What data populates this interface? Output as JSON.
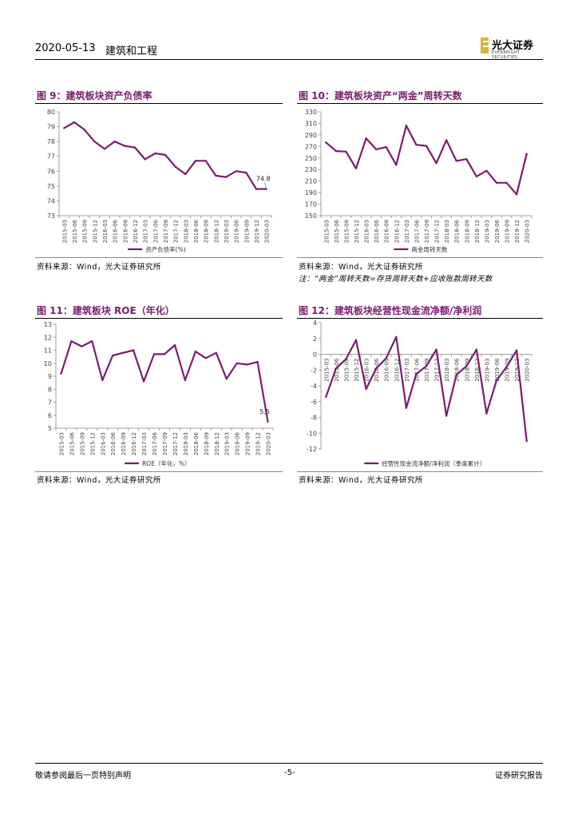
{
  "header": {
    "date": "2020-05-13",
    "sector": "建筑和工程",
    "logo_name": "光大证券",
    "logo_en": "EVERBRIGHT SECURITIES"
  },
  "footer": {
    "disclaimer": "敬请参阅最后一页特别声明",
    "page": "-5-",
    "type": "证券研究报告"
  },
  "figures": {
    "fig9": {
      "title": "图 9：建筑板块资产负债率",
      "source": "资料来源：Wind，光大证券研究所"
    },
    "fig10": {
      "title": "图 10：建筑板块资产“两金”周转天数",
      "source": "资料来源：Wind，光大证券研究所",
      "note": "注：“两金”周转天数=存货周转天数+应收账款周转天数"
    },
    "fig11": {
      "title": "图 11：建筑板块 ROE（年化）",
      "source": "资料来源：Wind，光大证券研究所"
    },
    "fig12": {
      "title": "图 12：建筑板块经营性现金流净额/净利润",
      "source": "资料来源：Wind，光大证券研究所"
    }
  },
  "chart_data": [
    {
      "id": "fig9",
      "type": "line",
      "title": "建筑板块资产负债率",
      "categories": [
        "2015-03",
        "2015-06",
        "2015-09",
        "2015-12",
        "2016-03",
        "2016-06",
        "2016-09",
        "2016-12",
        "2017-03",
        "2017-06",
        "2017-09",
        "2017-12",
        "2018-03",
        "2018-06",
        "2018-09",
        "2018-12",
        "2019-03",
        "2019-06",
        "2019-09",
        "2019-12",
        "2020-03"
      ],
      "x_tick_labels": [
        "2015-03",
        "2015-06",
        "2015-09",
        "2015-12",
        "2016-03",
        "2016-06",
        "2016-09",
        "2016-12",
        "2017-03",
        "2017-06",
        "2017-09",
        "2017-12",
        "2018-03",
        "2018-06",
        "2018-09",
        "2018-12",
        "2019-03",
        "2019-06",
        "2019-09",
        "2019-12",
        "2020-03"
      ],
      "series": [
        {
          "name": "资产负债率(%)",
          "values": [
            78.9,
            79.3,
            78.8,
            78.0,
            77.5,
            78.0,
            77.7,
            77.6,
            76.8,
            77.2,
            77.1,
            76.3,
            75.8,
            76.7,
            76.7,
            75.7,
            75.6,
            76.0,
            75.9,
            74.8,
            74.8
          ]
        }
      ],
      "ylim": [
        73,
        80
      ],
      "yticks": [
        73,
        74,
        75,
        76,
        77,
        78,
        79,
        80
      ],
      "annotation": {
        "text": "74.8",
        "index": 20
      },
      "color": "#7a1c6e"
    },
    {
      "id": "fig10",
      "type": "line",
      "title": "建筑板块资产“两金”周转天数",
      "categories": [
        "2015-03",
        "2015-06",
        "2015-09",
        "2015-12",
        "2016-03",
        "2016-06",
        "2016-09",
        "2016-12",
        "2017-03",
        "2017-06",
        "2017-09",
        "2017-12",
        "2018-03",
        "2018-06",
        "2018-09",
        "2018-12",
        "2019-03",
        "2019-06",
        "2019-09",
        "2019-12",
        "2020-03"
      ],
      "x_tick_labels": [
        "2015-03",
        "2015-06",
        "2015-09",
        "2015-12",
        "2016-03",
        "2016-06",
        "2016-09",
        "2016-12",
        "2017-03",
        "2017-06",
        "2017-09",
        "2017-12",
        "2018-03",
        "2018-06",
        "2018-09",
        "2018-12",
        "2019-03",
        "2019-06",
        "2019-09",
        "2019-12",
        "2020-03"
      ],
      "series": [
        {
          "name": "两金周转天数",
          "values": [
            277,
            262,
            261,
            232,
            284,
            265,
            269,
            238,
            306,
            273,
            271,
            241,
            281,
            245,
            248,
            218,
            228,
            207,
            207,
            187,
            257
          ]
        }
      ],
      "ylim": [
        150,
        330
      ],
      "yticks": [
        150,
        170,
        190,
        210,
        230,
        250,
        270,
        290,
        310,
        330
      ],
      "color": "#7a1c6e"
    },
    {
      "id": "fig11",
      "type": "line",
      "title": "建筑板块 ROE（年化）",
      "categories": [
        "2015-03",
        "2015-06",
        "2015-09",
        "2015-12",
        "2016-03",
        "2016-06",
        "2016-09",
        "2016-12",
        "2017-03",
        "2017-06",
        "2017-09",
        "2017-12",
        "2018-03",
        "2018-06",
        "2018-09",
        "2018-12",
        "2019-03",
        "2019-06",
        "2019-09",
        "2019-12",
        "2020-03"
      ],
      "x_tick_labels": [
        "2015-03",
        "2015-06",
        "2015-09",
        "2015-12",
        "2016-03",
        "2016-06",
        "2016-09",
        "2016-12",
        "2017-03",
        "2017-06",
        "2017-09",
        "2017-12",
        "2018-03",
        "2018-06",
        "2018-09",
        "2018-12",
        "2019-03",
        "2019-06",
        "2019-09",
        "2019-12",
        "2020-03"
      ],
      "series": [
        {
          "name": "ROE（年化，%）",
          "values": [
            9.2,
            11.7,
            11.3,
            11.7,
            8.7,
            10.6,
            10.8,
            11.0,
            8.6,
            10.7,
            10.7,
            11.4,
            8.7,
            10.9,
            10.4,
            10.8,
            8.8,
            10.0,
            9.9,
            10.1,
            5.5
          ]
        }
      ],
      "ylim": [
        5,
        13
      ],
      "yticks": [
        5,
        6,
        7,
        8,
        9,
        10,
        11,
        12,
        13
      ],
      "annotation": {
        "text": "5.5",
        "index": 20
      },
      "color": "#7a1c6e"
    },
    {
      "id": "fig12",
      "type": "line",
      "title": "建筑板块经营性现金流净额/净利润",
      "categories": [
        "2015-03",
        "2015-06",
        "2015-09",
        "2015-12",
        "2016-03",
        "2016-06",
        "2016-09",
        "2016-12",
        "2017-03",
        "2017-06",
        "2017-09",
        "2017-12",
        "2018-03",
        "2018-06",
        "2018-09",
        "2018-12",
        "2019-03",
        "2019-06",
        "2019-09",
        "2019-12",
        "2020-03"
      ],
      "x_tick_labels": [
        "2015-03",
        "2015-06",
        "2015-09",
        "2015-12",
        "2016-03",
        "2016-06",
        "2016-09",
        "2016-12",
        "2017-03",
        "2017-06",
        "2017-09",
        "2017-12",
        "2018-03",
        "2018-06",
        "2018-09",
        "2018-12",
        "2019-03",
        "2019-06",
        "2019-09",
        "2019-12",
        "2020-03"
      ],
      "series": [
        {
          "name": "经营性现金流净额/净利润（季度累计）",
          "values": [
            -5.4,
            -1.8,
            -0.6,
            1.8,
            -4.4,
            -1.8,
            -0.5,
            2.2,
            -6.8,
            -2.5,
            -1.5,
            0.6,
            -7.8,
            -2.6,
            -1.5,
            0.6,
            -7.5,
            -3.3,
            -1.6,
            0.5,
            -11.0
          ]
        }
      ],
      "ylim": [
        -12,
        4
      ],
      "yticks": [
        -12,
        -10,
        -8,
        -6,
        -4,
        -2,
        0,
        2,
        4
      ],
      "color": "#7a1c6e"
    }
  ]
}
